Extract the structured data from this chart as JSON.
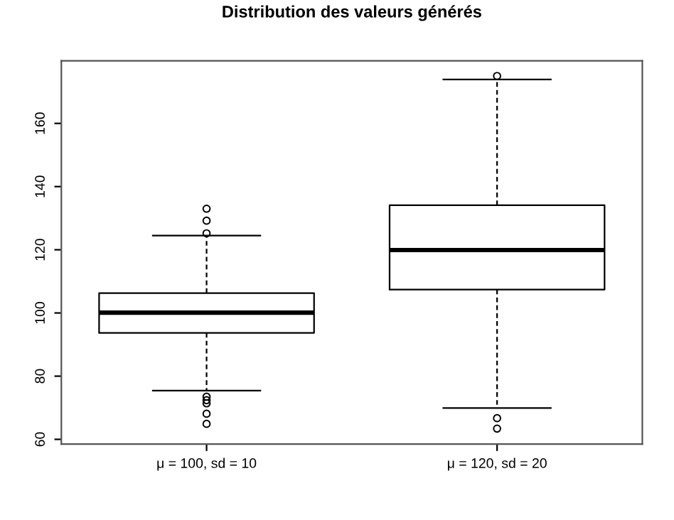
{
  "chart_data": {
    "type": "box",
    "title": "Distribution des valeurs générés",
    "categories": [
      "μ = 100, sd = 10",
      "μ = 120, sd = 20"
    ],
    "boxes": [
      {
        "low": 75.4,
        "q1": 93.7,
        "median": 100.1,
        "q3": 106.3,
        "high": 124.5,
        "outliers": [
          125.2,
          129.2,
          133.0,
          73.5,
          72.4,
          71.4,
          68.1,
          64.9
        ]
      },
      {
        "low": 69.9,
        "q1": 107.4,
        "median": 119.9,
        "q3": 134.1,
        "high": 173.9,
        "outliers": [
          175.0,
          66.7,
          63.4
        ]
      }
    ],
    "ylim": [
      58.5,
      179.8
    ],
    "yticks": [
      60,
      80,
      100,
      120,
      140,
      160
    ],
    "grid": false
  }
}
